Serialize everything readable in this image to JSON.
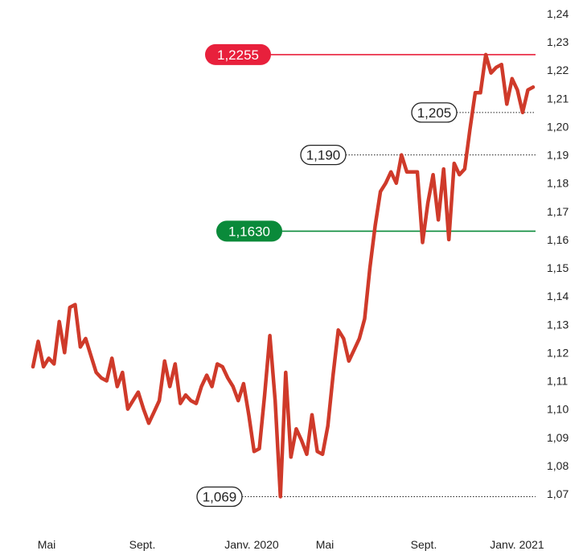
{
  "chart_data": {
    "type": "line",
    "ylim": [
      1.07,
      1.24
    ],
    "y_ticks": [
      "1,24",
      "1,23",
      "1,22",
      "1,21",
      "1,20",
      "1,19",
      "1,18",
      "1,17",
      "1,16",
      "1,15",
      "1,14",
      "1,13",
      "1,12",
      "1,11",
      "1,10",
      "1,09",
      "1,08",
      "1,07"
    ],
    "x_labels": [
      "Mai",
      "Sept.",
      "Janv. 2020",
      "Mai",
      "Sept.",
      "Janv. 2021"
    ],
    "reference_lines": [
      {
        "value": 1.2255,
        "label": "1,2255",
        "color": "#e8203c",
        "style": "solid",
        "badge": "filled"
      },
      {
        "value": 1.163,
        "label": "1,1630",
        "color": "#0a8a3a",
        "style": "solid",
        "badge": "filled"
      },
      {
        "value": 1.205,
        "label": "1,205",
        "color": "#222222",
        "style": "dotted",
        "badge": "outline"
      },
      {
        "value": 1.19,
        "label": "1,190",
        "color": "#222222",
        "style": "dotted",
        "badge": "outline"
      },
      {
        "value": 1.069,
        "label": "1,069",
        "color": "#222222",
        "style": "dotted",
        "badge": "outline"
      }
    ],
    "series_color": "#cf3a2a",
    "values": [
      1.115,
      1.124,
      1.115,
      1.118,
      1.116,
      1.131,
      1.12,
      1.136,
      1.137,
      1.122,
      1.125,
      1.119,
      1.113,
      1.111,
      1.11,
      1.118,
      1.108,
      1.113,
      1.1,
      1.103,
      1.106,
      1.1,
      1.095,
      1.099,
      1.103,
      1.117,
      1.108,
      1.116,
      1.102,
      1.105,
      1.103,
      1.102,
      1.108,
      1.112,
      1.108,
      1.116,
      1.115,
      1.111,
      1.108,
      1.103,
      1.109,
      1.098,
      1.085,
      1.086,
      1.105,
      1.126,
      1.103,
      1.069,
      1.113,
      1.083,
      1.093,
      1.089,
      1.084,
      1.098,
      1.085,
      1.084,
      1.094,
      1.112,
      1.128,
      1.125,
      1.117,
      1.121,
      1.125,
      1.132,
      1.15,
      1.165,
      1.177,
      1.18,
      1.184,
      1.18,
      1.19,
      1.184,
      1.184,
      1.184,
      1.159,
      1.173,
      1.183,
      1.167,
      1.185,
      1.16,
      1.187,
      1.183,
      1.185,
      1.199,
      1.212,
      1.212,
      1.2255,
      1.219,
      1.221,
      1.222,
      1.208,
      1.217,
      1.213,
      1.205,
      1.213,
      1.214
    ]
  }
}
